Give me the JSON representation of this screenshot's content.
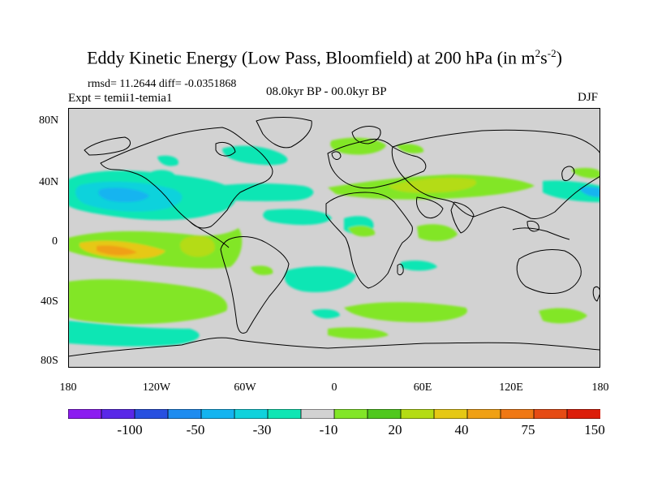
{
  "title": {
    "main": "Eddy Kinetic Energy (Low Pass, Bloomfield) at 200 hPa (in m",
    "sup1": "2",
    "mid": "s",
    "sup2": "-2",
    "end": ")"
  },
  "stats": "rmsd= 11.2644 diff= -0.0351868",
  "expt": "Expt = temii1-temia1",
  "period": "08.0kyr BP - 00.0kyr BP",
  "season": "DJF",
  "lat_labels": [
    "80N",
    "40N",
    "0",
    "40S",
    "80S"
  ],
  "lon_labels": [
    "180",
    "120W",
    "60W",
    "0",
    "60E",
    "120E",
    "180"
  ],
  "colorbar": {
    "colors": [
      "#8c1cf0",
      "#5a28e8",
      "#2850e0",
      "#1e8cf0",
      "#14b4f0",
      "#10d2dc",
      "#10e6b4",
      "#d2d2d2",
      "#82e628",
      "#50c81e",
      "#b4dc14",
      "#e6c814",
      "#f0a014",
      "#f07814",
      "#e64b14",
      "#dc1e0a"
    ],
    "labels": [
      "-100",
      "-50",
      "-30",
      "-10",
      "20",
      "40",
      "75",
      "150"
    ]
  },
  "map": {
    "ocean_color": "#d2d2d2",
    "coast_color": "#000000"
  }
}
